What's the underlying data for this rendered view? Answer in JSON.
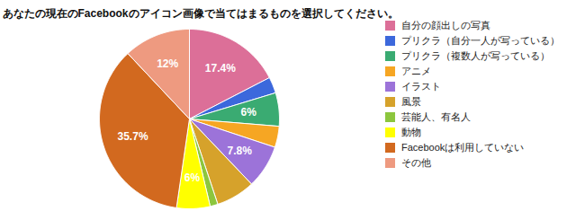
{
  "chart_data": {
    "type": "pie",
    "title": "あなたの現在のFacebookのアイコン画像で当てはまるものを選択してください。",
    "categories": [
      "自分の顔出しの写真",
      "プリクラ（自分一人が写っている）",
      "プリクラ（複数人が写っている）",
      "アニメ",
      "イラスト",
      "風景",
      "芸能人、有名人",
      "動物",
      "Facebookは利用していない",
      "その他"
    ],
    "values": [
      17.4,
      2.9,
      6,
      3.8,
      7.8,
      7.0,
      1.4,
      6,
      35.7,
      12
    ],
    "value_labels": [
      "17.4%",
      null,
      "6%",
      null,
      "7.8%",
      null,
      null,
      "6%",
      "35.7%",
      "12%"
    ],
    "data_labels": true,
    "colors": [
      "#dc6f98",
      "#3c68dc",
      "#3aab72",
      "#f6a623",
      "#9c73d9",
      "#d6a22b",
      "#8cc63e",
      "#ffff00",
      "#d2691f",
      "#ee9a80"
    ],
    "legend": "right"
  }
}
